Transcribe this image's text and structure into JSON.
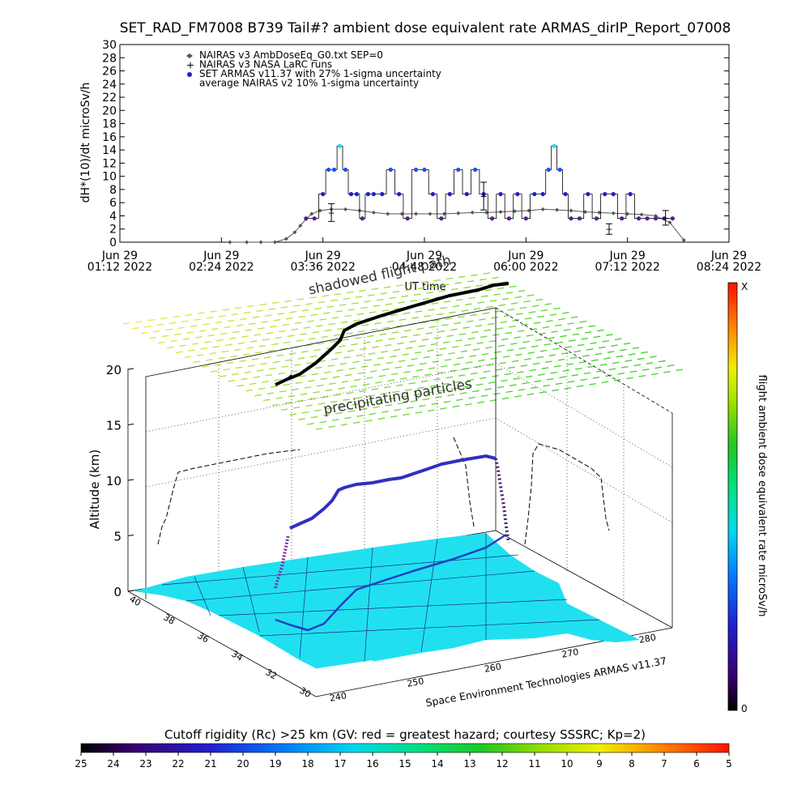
{
  "chart_data": [
    {
      "type": "scatter",
      "title": "SET_RAD_FM7008  B739 Tail#? ambient dose equivalent rate ARMAS_dirIP_Report_07008",
      "ylabel": "dH*(10)/dt microSv/h",
      "xlabel": "UT time",
      "ylim": [
        0,
        30
      ],
      "yticks": [
        0,
        2,
        4,
        6,
        8,
        10,
        12,
        14,
        16,
        18,
        20,
        22,
        24,
        26,
        28,
        30
      ],
      "xlim_minutes_from_first_tick": [
        0,
        432
      ],
      "xticks": [
        {
          "date": "Jun 29",
          "time": "01:12 2022"
        },
        {
          "date": "Jun 29",
          "time": "02:24 2022"
        },
        {
          "date": "Jun 29",
          "time": "03:36 2022"
        },
        {
          "date": "Jun 29",
          "time": "04:48 2022"
        },
        {
          "date": "Jun 29",
          "time": "06:00 2022"
        },
        {
          "date": "Jun 29",
          "time": "07:12 2022"
        },
        {
          "date": "Jun 29",
          "time": "08:24 2022"
        }
      ],
      "legend": [
        {
          "symbol": "diamond",
          "label": "NAIRAS v3 AmbDoseEq_G0.txt SEP=0"
        },
        {
          "symbol": "plus",
          "label": "NAIRAS v3 NASA LaRC runs"
        },
        {
          "symbol": "filled-circle",
          "label": "SET ARMAS v11.37 with 27% 1-sigma uncertainty"
        },
        {
          "symbol": "none",
          "label": "average NAIRAS v2 10% 1-sigma uncertainty"
        }
      ],
      "series": [
        {
          "name": "NAIRAS v3 AmbDoseEq_G0.txt SEP=0",
          "x": [
            78,
            90,
            100,
            110,
            118,
            124,
            128,
            132,
            136,
            142,
            150,
            160,
            170,
            180,
            190,
            200,
            210,
            220,
            230,
            240,
            250,
            260,
            270,
            280,
            290,
            300,
            310,
            320,
            330,
            340,
            350,
            360,
            370,
            380,
            390,
            400
          ],
          "values": [
            0,
            0,
            0,
            0,
            0.5,
            1.5,
            2.5,
            3.5,
            4.3,
            4.8,
            5.0,
            5.0,
            4.8,
            4.5,
            4.3,
            4.3,
            4.3,
            4.3,
            4.3,
            4.4,
            4.5,
            4.5,
            4.6,
            4.7,
            4.8,
            5.0,
            4.9,
            4.8,
            4.6,
            4.5,
            4.4,
            4.3,
            4.2,
            4.0,
            3.0,
            0.3
          ]
        },
        {
          "name": "SET ARMAS v11.37 with 27% 1-sigma uncertainty",
          "x": [
            132,
            138,
            144,
            148,
            152,
            156,
            160,
            164,
            168,
            172,
            176,
            180,
            186,
            192,
            198,
            204,
            210,
            216,
            222,
            228,
            234,
            240,
            246,
            252,
            258,
            264,
            270,
            276,
            282,
            288,
            294,
            300,
            304,
            308,
            312,
            316,
            320,
            326,
            332,
            338,
            344,
            350,
            356,
            362,
            368,
            374,
            380,
            386,
            392
          ],
          "values": [
            3.6,
            3.6,
            7.3,
            11.0,
            11.0,
            14.6,
            11.0,
            7.3,
            7.3,
            3.6,
            7.3,
            7.3,
            7.3,
            11.0,
            7.3,
            3.6,
            11.0,
            11.0,
            7.3,
            3.6,
            7.3,
            11.0,
            7.3,
            11.0,
            7.3,
            3.6,
            7.3,
            3.6,
            7.3,
            3.6,
            7.3,
            7.3,
            11.0,
            14.6,
            11.0,
            7.3,
            3.6,
            3.6,
            7.3,
            3.6,
            7.3,
            7.3,
            3.6,
            7.3,
            3.6,
            3.6,
            3.6,
            3.6,
            3.6
          ]
        },
        {
          "name": "NAIRAS v3 NASA LaRC runs",
          "x": [
            150,
            258,
            347,
            387
          ],
          "values": [
            4.5,
            7.0,
            2.0,
            3.7
          ]
        }
      ]
    },
    {
      "type": "surface-3d",
      "zlabel": "Altitude (km)",
      "zticks": [
        0,
        5,
        10,
        15,
        20
      ],
      "latitude_ticks": [
        30,
        32,
        34,
        36,
        38,
        40
      ],
      "longitude_ticks": [
        240,
        250,
        260,
        270,
        280
      ],
      "annotations": [
        "shadowed flight path",
        "precipitating particles"
      ],
      "credit": "Space Environment Technologies ARMAS v11.37",
      "colorbar": {
        "label": "flight ambient dose equivalent rate microSv/h",
        "top_label": "X",
        "bottom_label": "0"
      }
    },
    {
      "type": "colorbar",
      "title": "Cutoff rigidity (Rc) >25 km (GV: red = greatest hazard; courtesy SSSRC; Kp=2)",
      "ticks": [
        25,
        24,
        23,
        22,
        21,
        20,
        19,
        18,
        17,
        16,
        15,
        14,
        13,
        12,
        11,
        10,
        9,
        8,
        7,
        6,
        5
      ]
    }
  ]
}
